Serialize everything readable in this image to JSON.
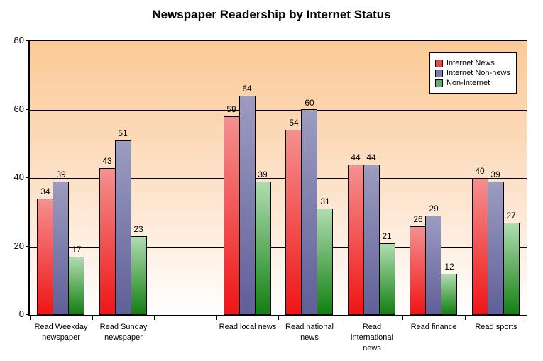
{
  "chart_data": {
    "type": "bar",
    "title": "Newspaper Readership by Internet Status",
    "categories": [
      "Read Weekday newspaper",
      "Read Sunday newspaper",
      "",
      "Read local news",
      "Read national news",
      "Read international news",
      "Read finance",
      "Read sports"
    ],
    "series": [
      {
        "name": "Internet News",
        "values": [
          34,
          43,
          null,
          58,
          54,
          44,
          26,
          40
        ],
        "color_top": "#f59090",
        "color_bottom": "#ef1515",
        "legend_color": "#e84848"
      },
      {
        "name": "Internet Non-news",
        "values": [
          39,
          51,
          null,
          64,
          60,
          44,
          29,
          39
        ],
        "color_top": "#9c9cc0",
        "color_bottom": "#5f5f99",
        "legend_color": "#7c7caa"
      },
      {
        "name": "Non-Internet",
        "values": [
          17,
          23,
          null,
          39,
          31,
          21,
          12,
          27
        ],
        "color_top": "#b0dcb0",
        "color_bottom": "#128012",
        "legend_color": "#66aa66"
      }
    ],
    "xlabel": "",
    "ylabel": "",
    "ylim": [
      0,
      80
    ],
    "yticks": [
      0,
      20,
      40,
      60,
      80
    ],
    "grid": "horizontal",
    "legend_position": "top-right",
    "plot_bg_top": "#fbca96",
    "plot_bg_mid": "#fde3cc",
    "plot_bg_bottom": "#ffffff"
  }
}
